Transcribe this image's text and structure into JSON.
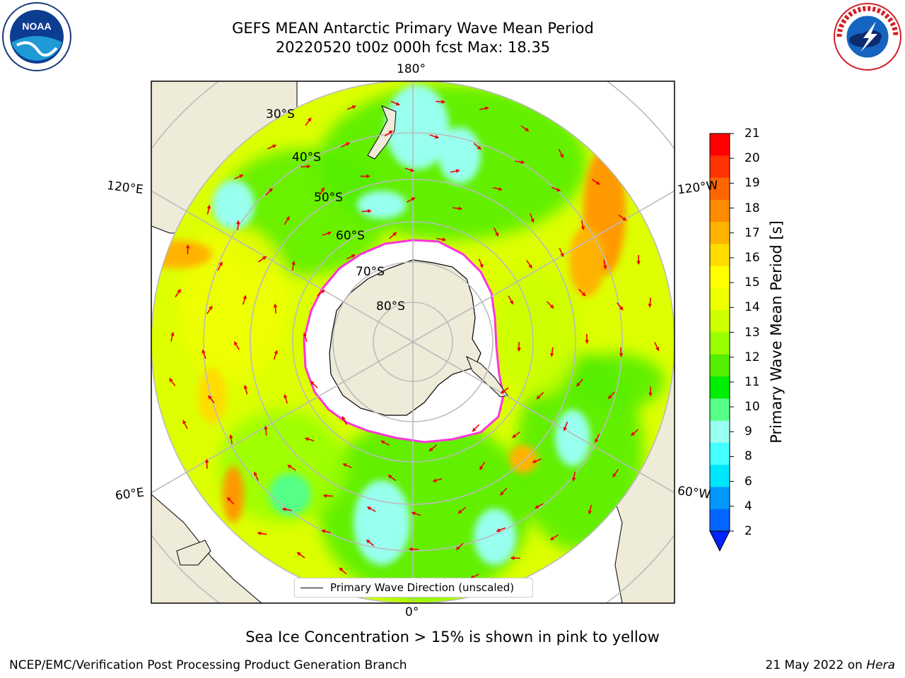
{
  "header": {
    "title_line1": "GEFS MEAN Antarctic Primary Wave Mean Period",
    "title_line2": "20220520 t00z 000h fcst   Max: 18.35"
  },
  "logos": {
    "left": "NOAA",
    "left_ring_text": "NATIONAL OCEANIC AND ATMOSPHERIC ADMINISTRATION · U.S. DEPARTMENT OF COMMERCE",
    "right_ring_text": "NATIONAL WEATHER SERVICE"
  },
  "map": {
    "projection": "south-polar-stereographic",
    "longitude_labels": {
      "top": "180°",
      "bottom": "0°",
      "left_upper": "120°E",
      "left_lower": "60°E",
      "right_upper": "120°W",
      "right_lower": "60°W"
    },
    "latitude_labels": [
      "30°S",
      "40°S",
      "50°S",
      "60°S",
      "70°S",
      "80°S"
    ],
    "legend_label": "Primary Wave Direction (unscaled)"
  },
  "colorbar": {
    "label": "Primary Wave Mean Period [s]",
    "ticks": [
      "21",
      "20",
      "19",
      "18",
      "17",
      "16",
      "15",
      "14",
      "13",
      "12",
      "11",
      "10",
      "9",
      "8",
      "6",
      "4",
      "2"
    ],
    "colors_top_to_bottom": [
      "#ff0000",
      "#ff3300",
      "#ff6600",
      "#ff8c00",
      "#ffb300",
      "#ffdd00",
      "#ffff00",
      "#eeff00",
      "#ccff00",
      "#99ff00",
      "#55ee00",
      "#00ee00",
      "#55ff88",
      "#99ffee",
      "#44ffff",
      "#00e6ff",
      "#0099ff",
      "#0066ff"
    ],
    "extend_color": "#0022ff"
  },
  "colors": {
    "land": "#efebd9",
    "ice": "#ffffff",
    "ice_edge": "#ff33dd",
    "arrow": "#ee0000",
    "grid": "#bbbbbb"
  },
  "caption": "Sea Ice Concentration > 15% is shown in pink to yellow",
  "footer": {
    "left": "NCEP/EMC/Verification Post Processing Product Generation Branch",
    "date": "21 May 2022 on ",
    "machine": "Hera"
  }
}
